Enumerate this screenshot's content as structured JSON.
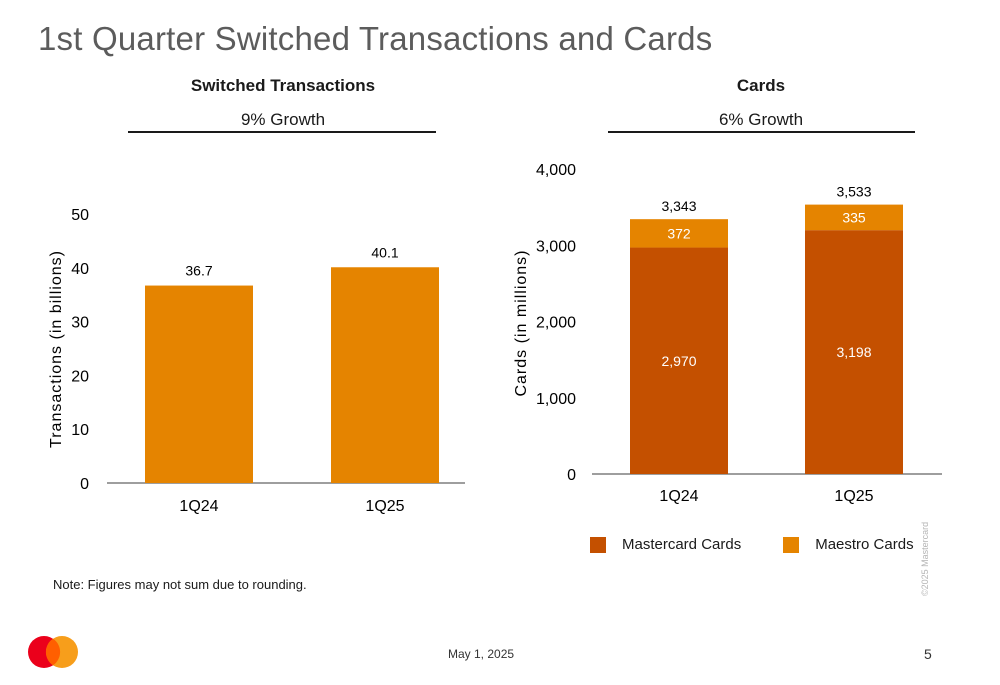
{
  "page": {
    "title": "1st Quarter Switched Transactions and Cards"
  },
  "left_chart": {
    "heading": "Switched Transactions",
    "subheading": "9% Growth"
  },
  "right_chart": {
    "heading": "Cards",
    "subheading": "6% Growth"
  },
  "note": "Note: Figures may not sum due to rounding.",
  "footer": {
    "date": "May 1, 2025",
    "page_number": "5",
    "copyright": "©2025 Mastercard"
  },
  "brand": {
    "logo_icon": "mastercard-logo-icon",
    "red": "#eb001b",
    "yellow": "#f79e1b",
    "orange": "#ff5f00"
  },
  "colors": {
    "transactions_bar": "#e58400",
    "mastercard_cards": "#c45000",
    "maestro_cards": "#e58400",
    "axis": "#7f7f7f"
  },
  "chart_data": [
    {
      "type": "bar",
      "title": "Switched Transactions",
      "categories": [
        "1Q24",
        "1Q25"
      ],
      "values": [
        36.7,
        40.1
      ],
      "data_labels": [
        "36.7",
        "40.1"
      ],
      "ylabel": "Transactions (in billions)",
      "ylim": [
        0,
        50
      ],
      "yticks": [
        0,
        10,
        20,
        30,
        40,
        50
      ],
      "ytick_labels": [
        "0",
        "10",
        "20",
        "30",
        "40",
        "50"
      ],
      "grid": false
    },
    {
      "type": "bar",
      "stacked": true,
      "title": "Cards",
      "categories": [
        "1Q24",
        "1Q25"
      ],
      "series": [
        {
          "name": "Mastercard Cards",
          "values": [
            2970,
            3198
          ],
          "labels": [
            "2,970",
            "3,198"
          ]
        },
        {
          "name": "Maestro Cards",
          "values": [
            372,
            335
          ],
          "labels": [
            "372",
            "335"
          ]
        }
      ],
      "totals": [
        3343,
        3533
      ],
      "total_labels": [
        "3,343",
        "3,533"
      ],
      "ylabel": "Cards (in millions)",
      "ylim": [
        0,
        4000
      ],
      "yticks": [
        0,
        1000,
        2000,
        3000,
        4000
      ],
      "ytick_labels": [
        "0",
        "1,000",
        "2,000",
        "3,000",
        "4,000"
      ],
      "legend_position": "bottom",
      "grid": false
    }
  ]
}
